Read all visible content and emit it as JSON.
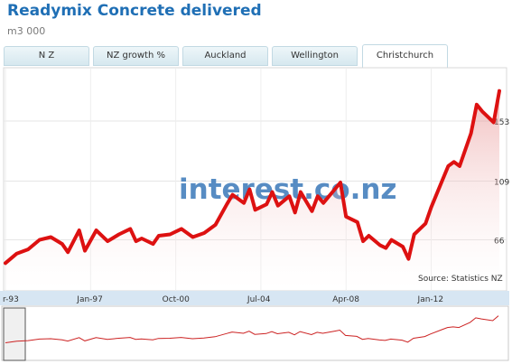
{
  "title": "Readymix Concrete delivered",
  "subtitle": "m3 000",
  "tabs": [
    {
      "label": "N Z",
      "active": false
    },
    {
      "label": "NZ growth %",
      "active": false
    },
    {
      "label": "Auckland",
      "active": false
    },
    {
      "label": "Wellington",
      "active": false
    },
    {
      "label": "Christchurch",
      "active": true
    }
  ],
  "watermark": "interest.co.nz",
  "source": "Source: Statistics NZ",
  "colors": {
    "series": "#dd1111",
    "navigator_line": "#cc2222",
    "axis_band": "#d7e6f3",
    "watermark": "#3a78b8"
  },
  "chart_data": {
    "type": "area",
    "title": "Readymix Concrete delivered",
    "ylabel": "",
    "ylim": [
      30,
      190
    ],
    "yticks": [
      66,
      109,
      153
    ],
    "xticks": [
      "r-93",
      "Jan-97",
      "Oct-00",
      "Jul-04",
      "Apr-08",
      "Jan-12"
    ],
    "xtick_positions": [
      1993.25,
      1997.0,
      2000.75,
      2004.5,
      2008.25,
      2012.0
    ],
    "grid": true,
    "legend": "none",
    "series": [
      {
        "x": [
          1993.25,
          1993.75,
          1994.25,
          1994.75,
          1995.25,
          1995.75,
          1996.0,
          1996.5,
          1996.75,
          1997.25,
          1997.75,
          1998.25,
          1998.75,
          1999.0,
          1999.25,
          1999.75,
          2000.0,
          2000.5,
          2001.0,
          2001.5,
          2002.0,
          2002.5,
          2003.0,
          2003.25,
          2003.75,
          2004.0,
          2004.25,
          2004.75,
          2005.0,
          2005.25,
          2005.75,
          2006.0,
          2006.25,
          2006.75,
          2007.0,
          2007.25,
          2007.75,
          2008.0,
          2008.25,
          2008.75,
          2009.0,
          2009.25,
          2009.75,
          2010.0,
          2010.25,
          2010.75,
          2011.0,
          2011.25,
          2011.75,
          2012.0,
          2012.5,
          2012.75,
          2013.0,
          2013.25,
          2013.75,
          2014.0,
          2014.25,
          2014.75,
          2015.0
        ],
        "values": [
          49,
          56,
          59,
          66,
          68,
          63,
          57,
          73,
          58,
          73,
          65,
          70,
          74,
          65,
          67,
          63,
          69,
          70,
          74,
          68,
          71,
          77,
          92,
          99,
          93,
          103,
          88,
          92,
          101,
          91,
          98,
          86,
          101,
          87,
          98,
          93,
          103,
          108,
          83,
          79,
          65,
          69,
          62,
          60,
          66,
          61,
          52,
          70,
          78,
          90,
          110,
          120,
          123,
          120,
          144,
          165,
          160,
          152,
          175
        ]
      }
    ]
  }
}
